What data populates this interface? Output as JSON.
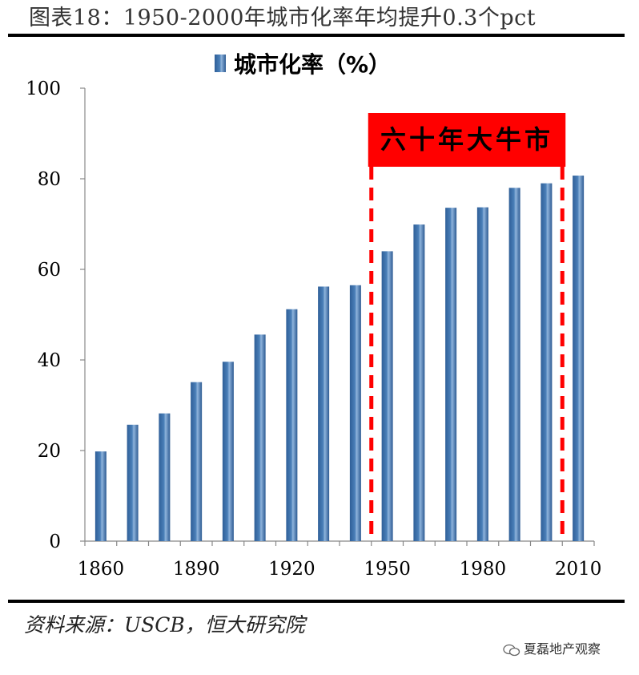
{
  "figure_title": "图表18：1950-2000年城市化率年均提升0.3个pct",
  "source": "资料来源：USCB，恒大研究院",
  "watermark": "夏磊地产观察",
  "colors": {
    "bar": "#4a7fb8",
    "highlight": "#ff0000",
    "highlight_text": "#000000"
  },
  "chart_data": {
    "type": "bar",
    "legend": {
      "label": "城市化率（%）",
      "position": "top-center"
    },
    "categories": [
      "1860",
      "1870",
      "1880",
      "1890",
      "1900",
      "1910",
      "1920",
      "1930",
      "1940",
      "1950",
      "1960",
      "1970",
      "1980",
      "1990",
      "2000",
      "2010"
    ],
    "tick_labels": [
      "1860",
      "1890",
      "1920",
      "1950",
      "1980",
      "2010"
    ],
    "series": [
      {
        "values": [
          19.8,
          25.7,
          28.2,
          35.1,
          39.6,
          45.6,
          51.2,
          56.2,
          56.5,
          64.0,
          69.9,
          73.6,
          73.7,
          78.0,
          79.0,
          80.7
        ]
      }
    ],
    "ylim": [
      0,
      100
    ],
    "yticks": [
      0,
      20,
      40,
      60,
      80,
      100
    ],
    "grid": false,
    "annotation": {
      "text": "六十年大牛市",
      "from": "1945",
      "to": "2005"
    }
  }
}
